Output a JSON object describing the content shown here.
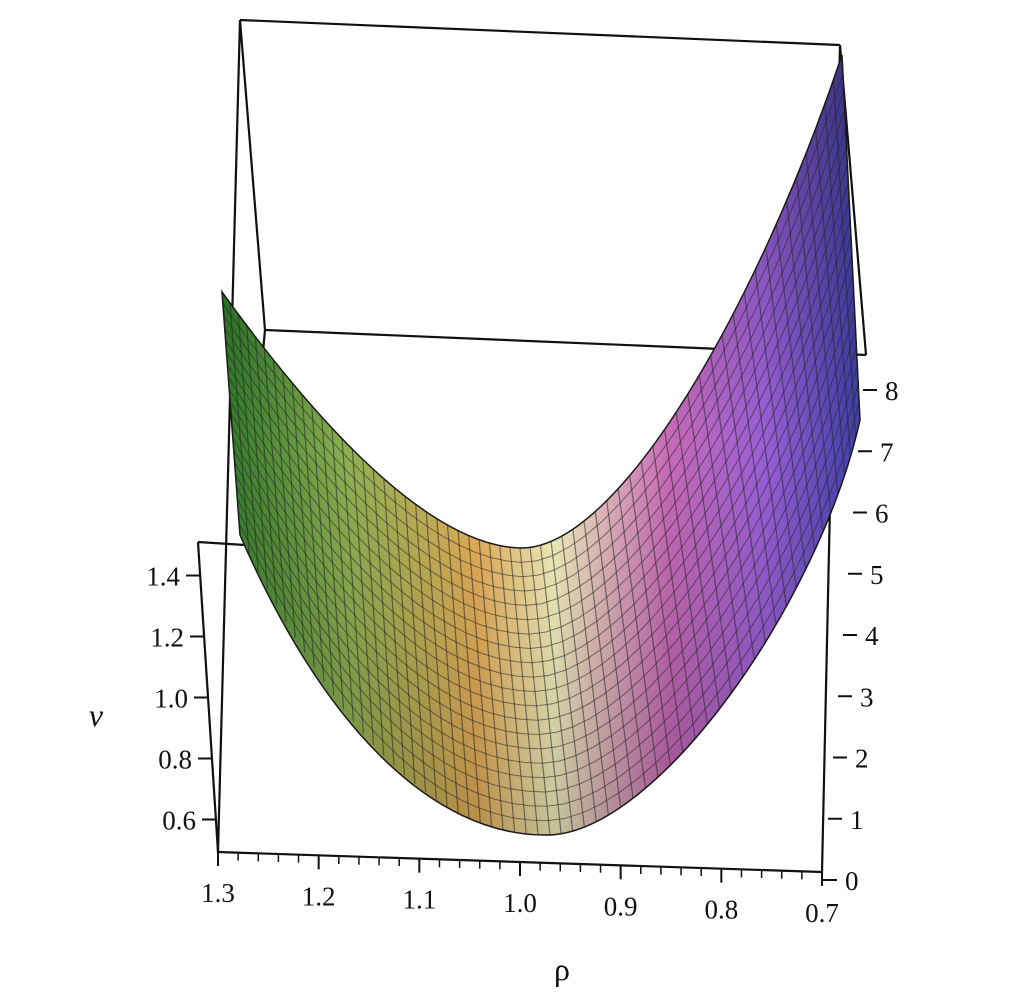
{
  "chart_data": {
    "type": "surface",
    "xlabel": "ρ",
    "ylabel": "v",
    "x_ticks": [
      "1.3",
      "1.2",
      "1.1",
      "1.0",
      "0.9",
      "0.8",
      "0.7"
    ],
    "v_ticks": [
      "1.4",
      "1.2",
      "1.0",
      "0.8",
      "0.6"
    ],
    "z_ticks": [
      "0",
      "1",
      "2",
      "3",
      "4",
      "5",
      "6",
      "7",
      "8"
    ],
    "x_range": [
      0.7,
      1.3
    ],
    "v_range": [
      0.5,
      1.5
    ],
    "z_range": [
      0,
      8.5
    ],
    "box_visible": true,
    "mesh_visible": true,
    "colormap": [
      "#2f7a2a",
      "#e8b05a",
      "#f6f3c0",
      "#c76ab7",
      "#9a5fd6",
      "#3f3fa8"
    ]
  }
}
